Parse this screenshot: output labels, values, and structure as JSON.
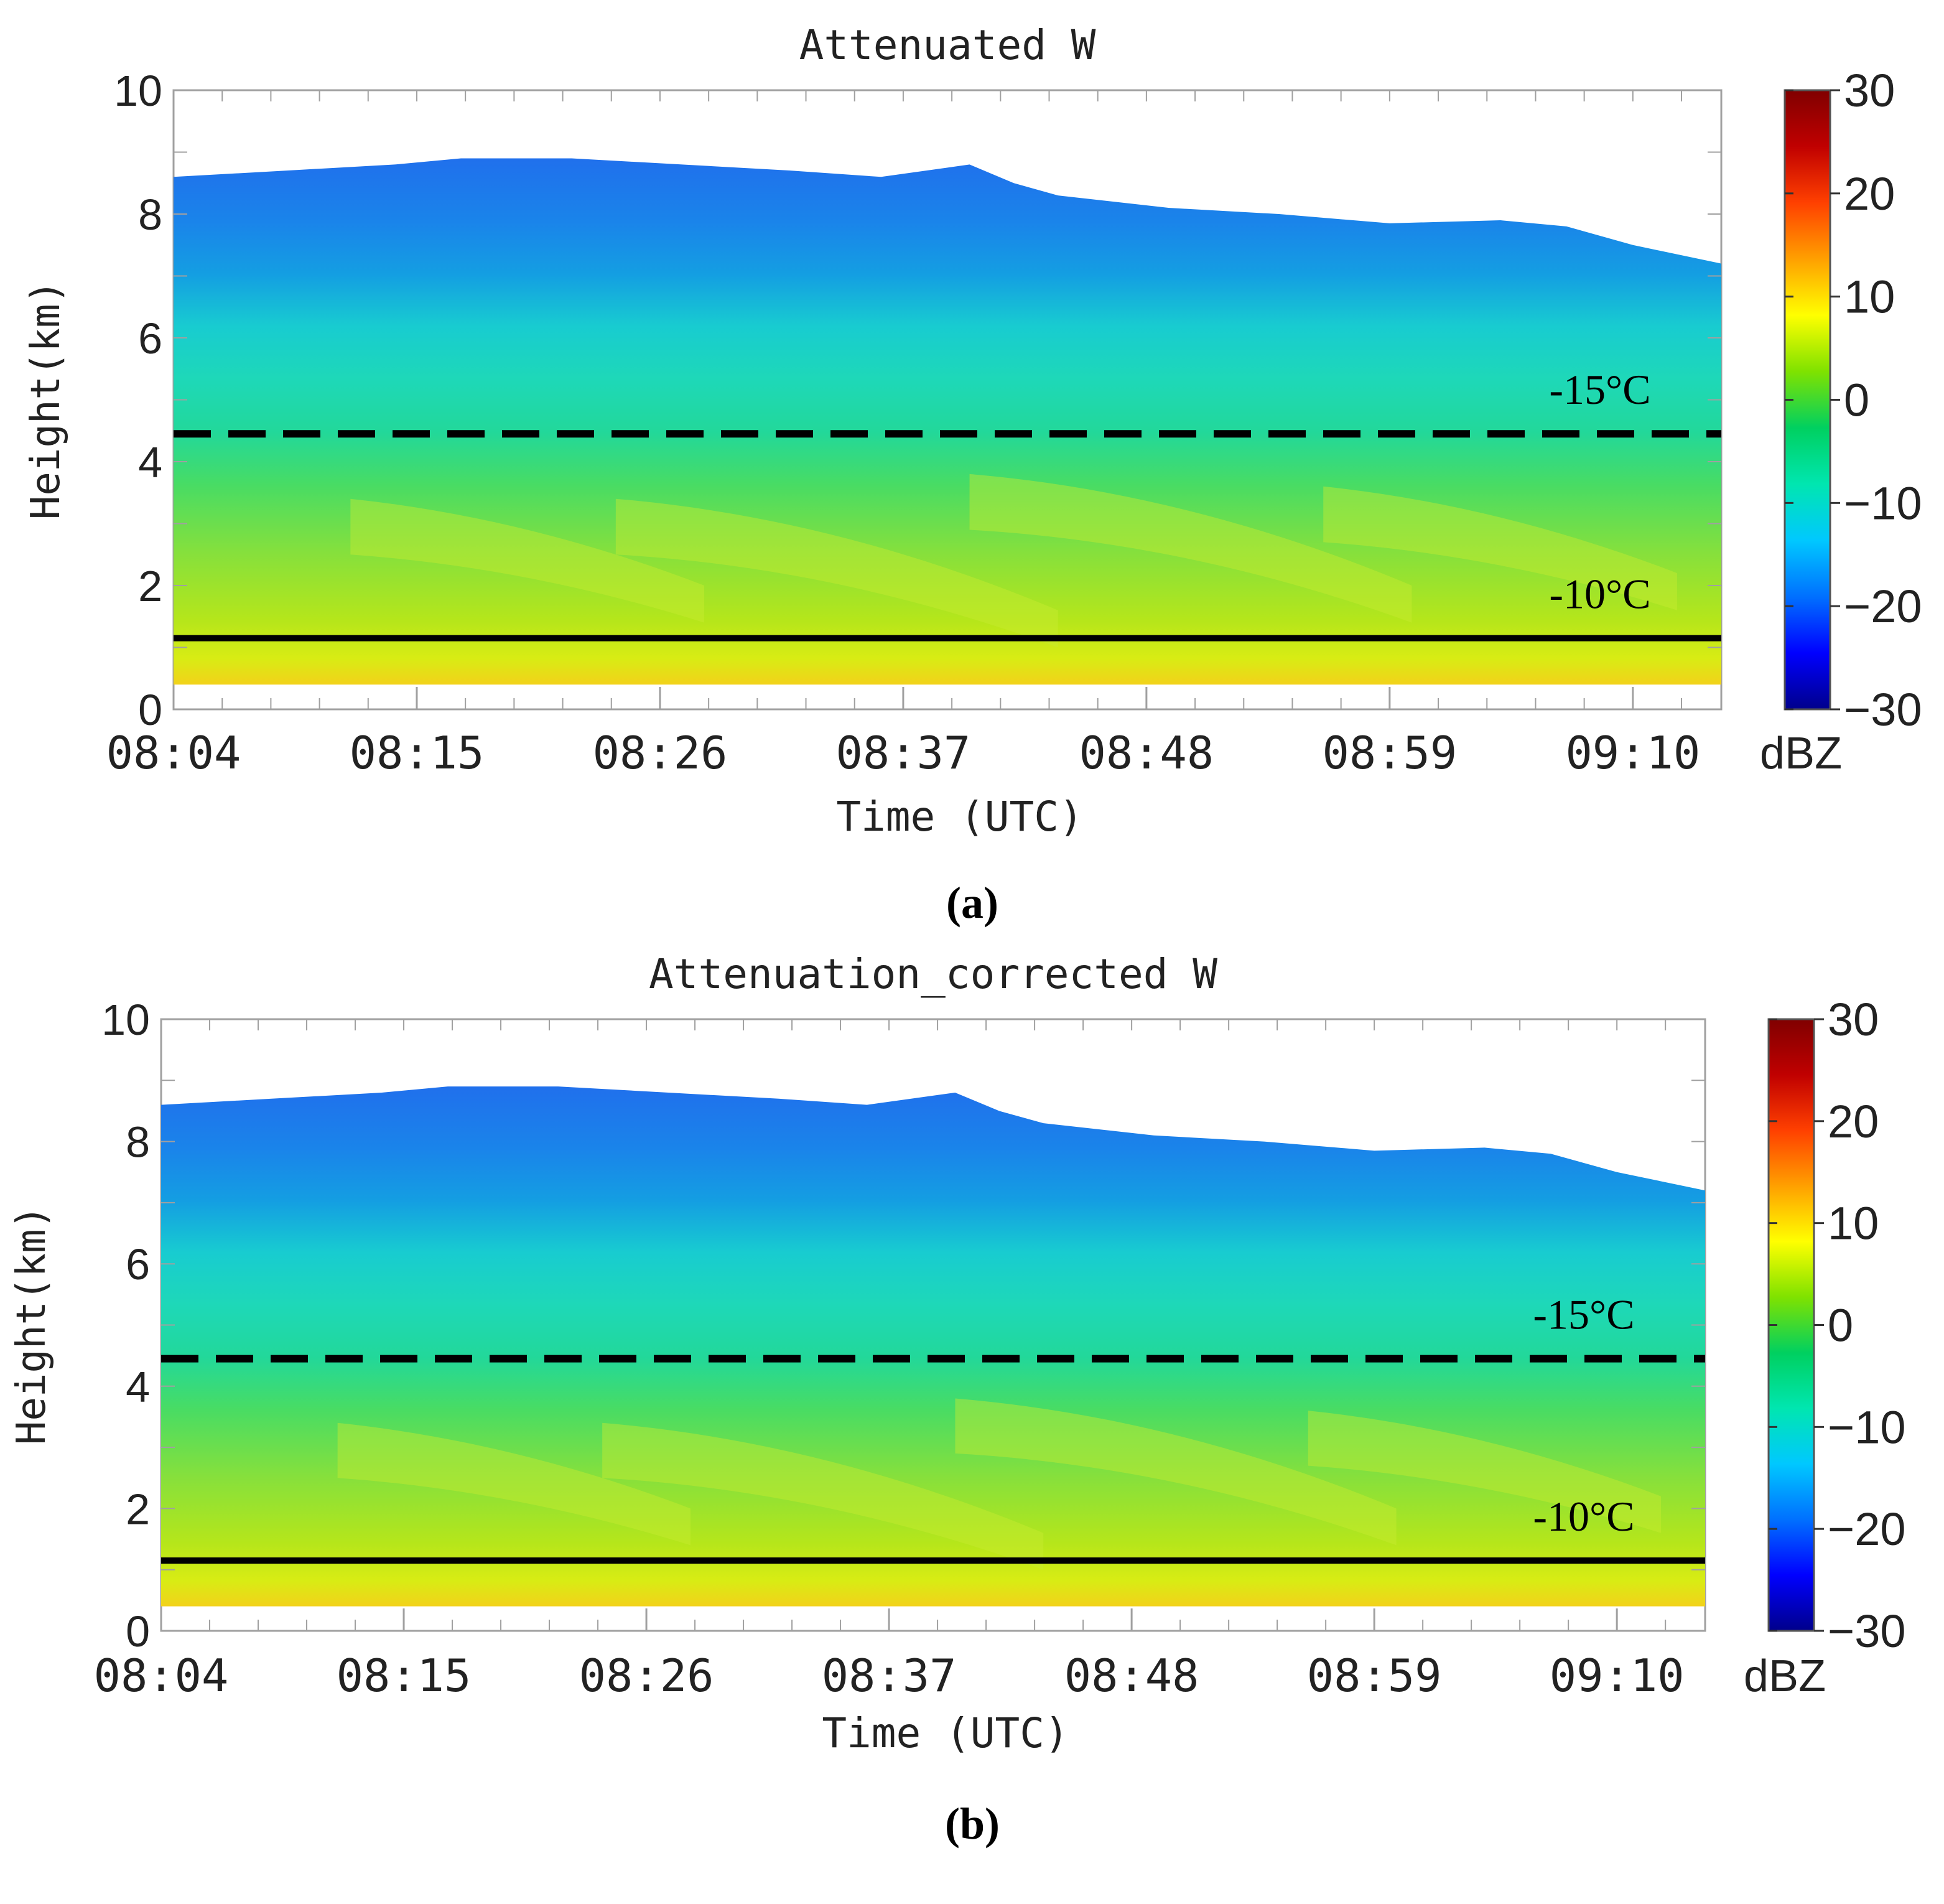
{
  "chart_data": [
    {
      "type": "heatmap",
      "panel_label": "(a)",
      "title": "Attenuated W",
      "xlabel": "Time (UTC)",
      "ylabel": "Height(km)",
      "x_ticks": [
        "08:04",
        "08:15",
        "08:26",
        "08:37",
        "08:48",
        "08:59",
        "09:10"
      ],
      "xlim_minutes": [
        0,
        70
      ],
      "ylim": [
        0,
        10
      ],
      "y_ticks": [
        "0",
        "2",
        "4",
        "6",
        "8",
        "10"
      ],
      "colorbar": {
        "label": "dBZ",
        "range": [
          -30,
          30
        ],
        "ticks": [
          "30",
          "20",
          "10",
          "0",
          "−10",
          "−20",
          "−30"
        ]
      },
      "data_bottom_km": 0.4,
      "echo_top_km": [
        [
          0,
          8.6
        ],
        [
          5,
          8.7
        ],
        [
          10,
          8.8
        ],
        [
          13,
          8.9
        ],
        [
          18,
          8.9
        ],
        [
          23,
          8.8
        ],
        [
          28,
          8.7
        ],
        [
          32,
          8.6
        ],
        [
          36,
          8.8
        ],
        [
          38,
          8.5
        ],
        [
          40,
          8.3
        ],
        [
          45,
          8.1
        ],
        [
          50,
          8.0
        ],
        [
          55,
          7.85
        ],
        [
          60,
          7.9
        ],
        [
          63,
          7.8
        ],
        [
          66,
          7.5
        ],
        [
          70,
          7.2
        ]
      ],
      "isotherms": [
        {
          "label": "-15°C",
          "height_km": 4.45,
          "style": "dashed"
        },
        {
          "label": "-10°C",
          "height_km": 1.15,
          "style": "solid"
        }
      ]
    },
    {
      "type": "heatmap",
      "panel_label": "(b)",
      "title": "Attenuation_corrected W",
      "xlabel": "Time (UTC)",
      "ylabel": "Height(km)",
      "x_ticks": [
        "08:04",
        "08:15",
        "08:26",
        "08:37",
        "08:48",
        "08:59",
        "09:10"
      ],
      "xlim_minutes": [
        0,
        70
      ],
      "ylim": [
        0,
        10
      ],
      "y_ticks": [
        "0",
        "2",
        "4",
        "6",
        "8",
        "10"
      ],
      "colorbar": {
        "label": "dBZ",
        "range": [
          -30,
          30
        ],
        "ticks": [
          "30",
          "20",
          "10",
          "0",
          "−10",
          "−20",
          "−30"
        ]
      },
      "data_bottom_km": 0.4,
      "echo_top_km": [
        [
          0,
          8.6
        ],
        [
          5,
          8.7
        ],
        [
          10,
          8.8
        ],
        [
          13,
          8.9
        ],
        [
          18,
          8.9
        ],
        [
          23,
          8.8
        ],
        [
          28,
          8.7
        ],
        [
          32,
          8.6
        ],
        [
          36,
          8.8
        ],
        [
          38,
          8.5
        ],
        [
          40,
          8.3
        ],
        [
          45,
          8.1
        ],
        [
          50,
          8.0
        ],
        [
          55,
          7.85
        ],
        [
          60,
          7.9
        ],
        [
          63,
          7.8
        ],
        [
          66,
          7.5
        ],
        [
          70,
          7.2
        ]
      ],
      "isotherms": [
        {
          "label": "-15°C",
          "height_km": 4.45,
          "style": "dashed"
        },
        {
          "label": "-10°C",
          "height_km": 1.15,
          "style": "solid"
        }
      ]
    }
  ],
  "colors": {
    "axis": "#a0a0a0",
    "isotherm": "#000000",
    "colormap": [
      "#00008b",
      "#0000ff",
      "#0070ff",
      "#00c8ff",
      "#00e6b0",
      "#00d060",
      "#7fe200",
      "#ffff00",
      "#ffa000",
      "#ff4000",
      "#c00000",
      "#800000"
    ]
  }
}
